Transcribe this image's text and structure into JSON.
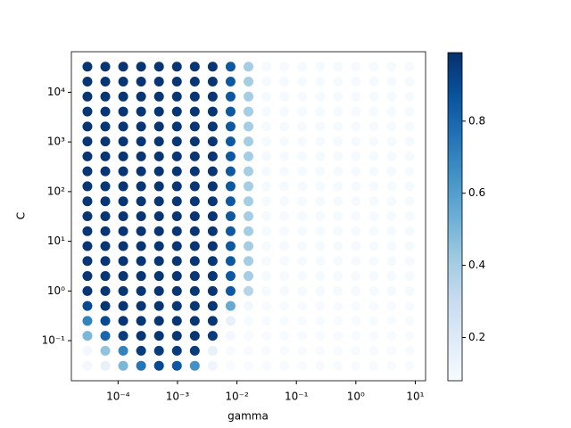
{
  "chart_data": {
    "type": "scatter",
    "x_label": "gamma",
    "y_label": "C",
    "x_scale": "log",
    "y_scale": "log",
    "cmap": "Blues",
    "x": [
      3.0517578125e-05,
      6.103515625e-05,
      0.0001220703125,
      0.000244140625,
      0.00048828125,
      0.0009765625,
      0.001953125,
      0.00390625,
      0.0078125,
      0.015625,
      0.03125,
      0.0625,
      0.125,
      0.25,
      0.5,
      1,
      2,
      4,
      8
    ],
    "y": [
      0.03125,
      0.0625,
      0.125,
      0.25,
      0.5,
      1,
      2,
      4,
      8,
      16,
      32,
      64,
      128,
      256,
      512,
      1024,
      2048,
      4096,
      8192,
      16384,
      32768
    ],
    "values": [
      [
        0.1,
        0.15,
        0.5,
        0.75,
        0.9,
        0.85,
        0.65,
        0.12,
        0.08,
        0.08,
        0.08,
        0.08,
        0.08,
        0.08,
        0.08,
        0.08,
        0.08,
        0.08,
        0.08
      ],
      [
        0.1,
        0.45,
        0.7,
        0.95,
        0.95,
        0.95,
        0.95,
        0.15,
        0.08,
        0.08,
        0.08,
        0.08,
        0.08,
        0.08,
        0.08,
        0.08,
        0.08,
        0.08,
        0.08
      ],
      [
        0.5,
        0.8,
        0.95,
        0.97,
        0.97,
        0.97,
        0.97,
        0.95,
        0.1,
        0.08,
        0.08,
        0.08,
        0.08,
        0.08,
        0.08,
        0.08,
        0.08,
        0.08,
        0.08
      ],
      [
        0.7,
        0.9,
        0.97,
        0.97,
        0.97,
        0.97,
        0.97,
        0.97,
        0.15,
        0.08,
        0.08,
        0.08,
        0.08,
        0.08,
        0.08,
        0.08,
        0.08,
        0.08,
        0.08
      ],
      [
        0.9,
        0.97,
        0.97,
        0.97,
        0.97,
        0.97,
        0.97,
        0.97,
        0.55,
        0.1,
        0.08,
        0.08,
        0.08,
        0.08,
        0.08,
        0.08,
        0.08,
        0.08,
        0.08
      ],
      [
        0.97,
        0.97,
        0.97,
        0.97,
        0.97,
        0.97,
        0.97,
        0.97,
        0.85,
        0.35,
        0.09,
        0.09,
        0.09,
        0.09,
        0.09,
        0.09,
        0.09,
        0.09,
        0.09
      ],
      [
        0.97,
        0.97,
        0.97,
        0.97,
        0.97,
        0.97,
        0.97,
        0.97,
        0.85,
        0.4,
        0.09,
        0.09,
        0.09,
        0.09,
        0.09,
        0.09,
        0.09,
        0.09,
        0.09
      ],
      [
        0.97,
        0.97,
        0.97,
        0.97,
        0.97,
        0.97,
        0.97,
        0.97,
        0.85,
        0.4,
        0.09,
        0.09,
        0.09,
        0.09,
        0.09,
        0.09,
        0.09,
        0.09,
        0.09
      ],
      [
        0.97,
        0.97,
        0.97,
        0.97,
        0.97,
        0.97,
        0.97,
        0.97,
        0.85,
        0.4,
        0.09,
        0.09,
        0.09,
        0.09,
        0.09,
        0.09,
        0.09,
        0.09,
        0.09
      ],
      [
        0.97,
        0.97,
        0.97,
        0.97,
        0.97,
        0.97,
        0.97,
        0.97,
        0.85,
        0.4,
        0.09,
        0.09,
        0.09,
        0.09,
        0.09,
        0.09,
        0.09,
        0.09,
        0.09
      ],
      [
        0.97,
        0.97,
        0.97,
        0.97,
        0.97,
        0.97,
        0.97,
        0.97,
        0.85,
        0.4,
        0.09,
        0.09,
        0.09,
        0.09,
        0.09,
        0.09,
        0.09,
        0.09,
        0.09
      ],
      [
        0.97,
        0.97,
        0.97,
        0.97,
        0.97,
        0.97,
        0.97,
        0.97,
        0.85,
        0.4,
        0.09,
        0.09,
        0.09,
        0.09,
        0.09,
        0.09,
        0.09,
        0.09,
        0.09
      ],
      [
        0.97,
        0.97,
        0.97,
        0.97,
        0.97,
        0.97,
        0.97,
        0.97,
        0.85,
        0.4,
        0.09,
        0.09,
        0.09,
        0.09,
        0.09,
        0.09,
        0.09,
        0.09,
        0.09
      ],
      [
        0.97,
        0.97,
        0.97,
        0.97,
        0.97,
        0.97,
        0.97,
        0.97,
        0.85,
        0.4,
        0.09,
        0.09,
        0.09,
        0.09,
        0.09,
        0.09,
        0.09,
        0.09,
        0.09
      ],
      [
        0.97,
        0.97,
        0.97,
        0.97,
        0.97,
        0.97,
        0.97,
        0.97,
        0.85,
        0.4,
        0.09,
        0.09,
        0.09,
        0.09,
        0.09,
        0.09,
        0.09,
        0.09,
        0.09
      ],
      [
        0.97,
        0.97,
        0.97,
        0.97,
        0.97,
        0.97,
        0.97,
        0.97,
        0.85,
        0.4,
        0.09,
        0.09,
        0.09,
        0.09,
        0.09,
        0.09,
        0.09,
        0.09,
        0.09
      ],
      [
        0.97,
        0.97,
        0.97,
        0.97,
        0.97,
        0.97,
        0.97,
        0.97,
        0.85,
        0.4,
        0.09,
        0.09,
        0.09,
        0.09,
        0.09,
        0.09,
        0.09,
        0.09,
        0.09
      ],
      [
        0.97,
        0.97,
        0.97,
        0.97,
        0.97,
        0.97,
        0.97,
        0.97,
        0.85,
        0.4,
        0.09,
        0.09,
        0.09,
        0.09,
        0.09,
        0.09,
        0.09,
        0.09,
        0.09
      ],
      [
        0.97,
        0.97,
        0.97,
        0.97,
        0.97,
        0.97,
        0.97,
        0.97,
        0.85,
        0.4,
        0.09,
        0.09,
        0.09,
        0.09,
        0.09,
        0.09,
        0.09,
        0.09,
        0.09
      ],
      [
        0.97,
        0.97,
        0.97,
        0.97,
        0.97,
        0.97,
        0.97,
        0.97,
        0.85,
        0.4,
        0.09,
        0.09,
        0.09,
        0.09,
        0.09,
        0.09,
        0.09,
        0.09,
        0.09
      ],
      [
        0.97,
        0.97,
        0.97,
        0.97,
        0.97,
        0.97,
        0.97,
        0.97,
        0.85,
        0.4,
        0.09,
        0.09,
        0.09,
        0.09,
        0.09,
        0.09,
        0.09,
        0.09,
        0.09
      ]
    ],
    "xlim": [
      1.64e-05,
      14.9
    ],
    "ylim": [
      0.0156,
      65500
    ],
    "xticks": [
      {
        "value": 0.0001,
        "label": "10⁻⁴"
      },
      {
        "value": 0.001,
        "label": "10⁻³"
      },
      {
        "value": 0.01,
        "label": "10⁻²"
      },
      {
        "value": 0.1,
        "label": "10⁻¹"
      },
      {
        "value": 1,
        "label": "10⁰"
      },
      {
        "value": 10,
        "label": "10¹"
      }
    ],
    "yticks": [
      {
        "value": 0.1,
        "label": "10⁻¹"
      },
      {
        "value": 1,
        "label": "10⁰"
      },
      {
        "value": 10,
        "label": "10¹"
      },
      {
        "value": 100,
        "label": "10²"
      },
      {
        "value": 1000,
        "label": "10³"
      },
      {
        "value": 10000,
        "label": "10⁴"
      }
    ],
    "clim": [
      0.08,
      0.99
    ],
    "cticks": [
      0.2,
      0.4,
      0.6,
      0.8
    ]
  }
}
